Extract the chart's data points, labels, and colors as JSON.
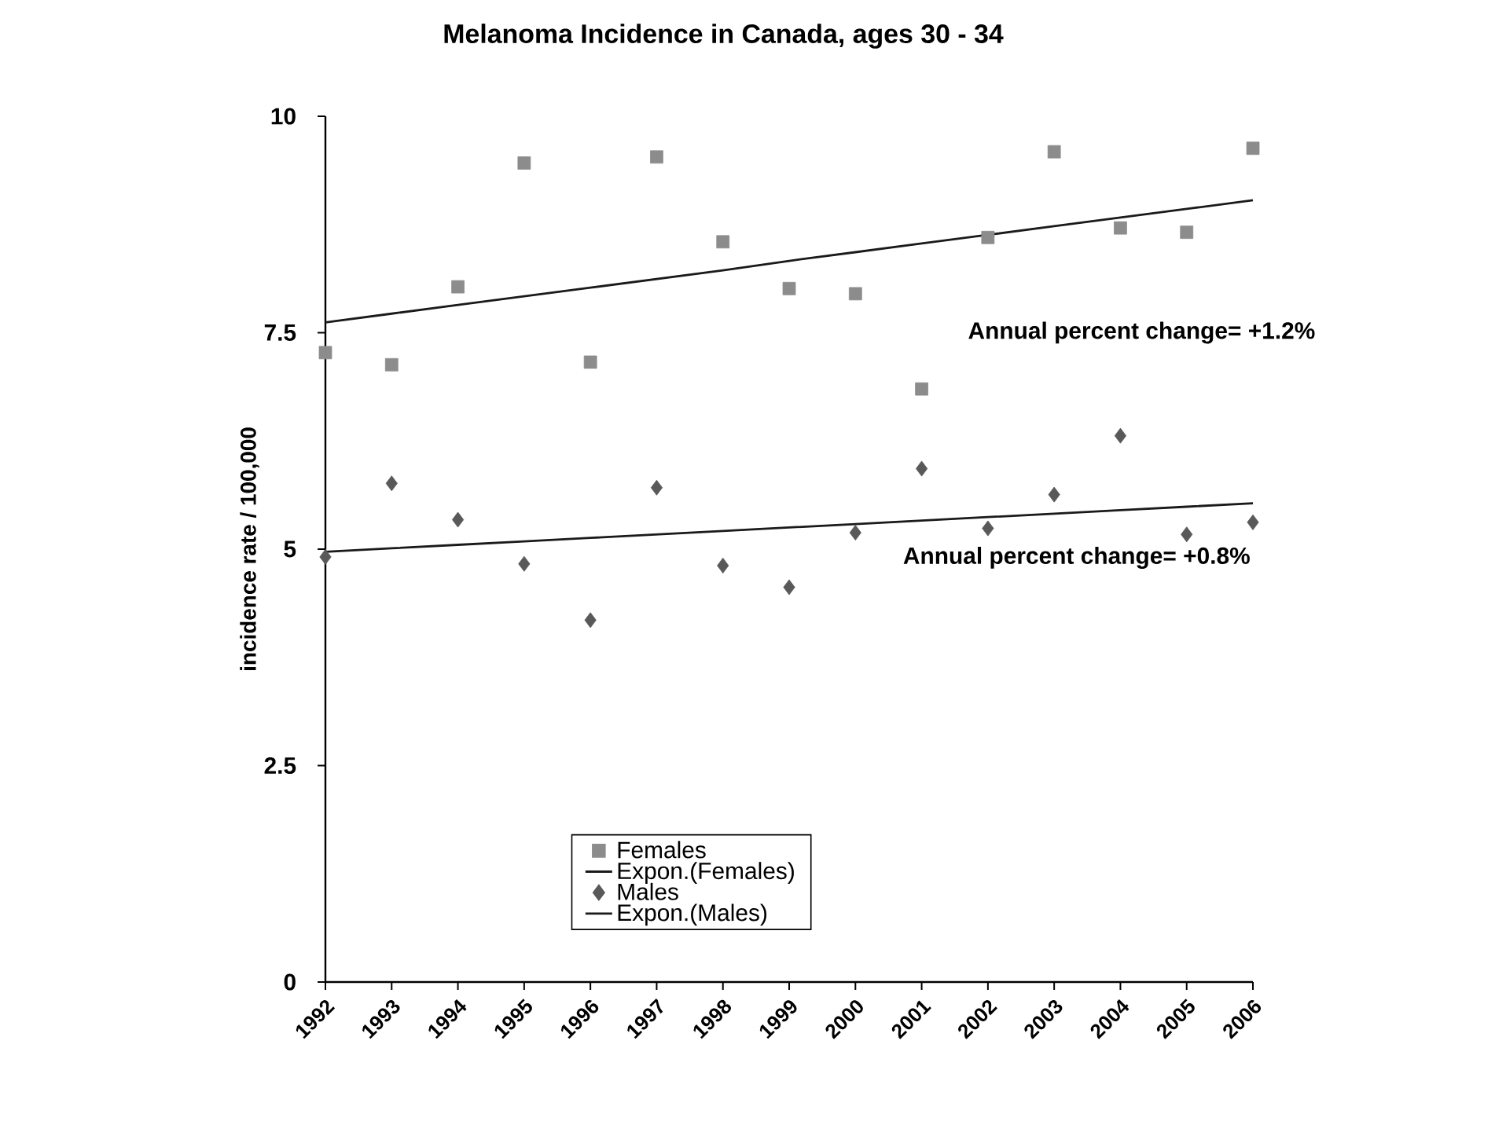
{
  "chart_data": {
    "type": "scatter",
    "title": "Melanoma Incidence in Canada,  ages 30 - 34",
    "ylabel": "incidence rate / 100,000",
    "x": [
      1992,
      1993,
      1994,
      1995,
      1996,
      1997,
      1998,
      1999,
      2000,
      2001,
      2002,
      2003,
      2004,
      2005,
      2006
    ],
    "xlim": [
      1992,
      2006
    ],
    "xticks": [
      1992,
      1993,
      1994,
      1995,
      1996,
      1997,
      1998,
      1999,
      2000,
      2001,
      2002,
      2003,
      2004,
      2005,
      2006
    ],
    "ylim": [
      0,
      10
    ],
    "yticks": [
      0,
      2.5,
      5,
      7.5,
      10
    ],
    "series": [
      {
        "name": "Females",
        "marker": "square",
        "color": "#8c8c8c",
        "values": [
          7.27,
          7.13,
          8.03,
          9.46,
          7.16,
          9.53,
          8.55,
          8.01,
          7.95,
          6.85,
          8.6,
          9.59,
          8.71,
          8.66,
          9.63
        ]
      },
      {
        "name": "Expon.(Females)",
        "type": "line",
        "marker": "none",
        "color": "#1a1a1a",
        "values": [
          7.62,
          7.72,
          7.82,
          7.92,
          8.02,
          8.12,
          8.22,
          8.33,
          8.43,
          8.53,
          8.63,
          8.73,
          8.83,
          8.93,
          9.03
        ]
      },
      {
        "name": "Males",
        "marker": "diamond",
        "color": "#595959",
        "values": [
          4.91,
          5.76,
          5.34,
          4.83,
          4.18,
          5.71,
          4.81,
          4.56,
          5.19,
          5.93,
          5.24,
          5.63,
          6.31,
          5.17,
          5.31
        ]
      },
      {
        "name": "Expon.(Males)",
        "type": "line",
        "marker": "none",
        "color": "#1a1a1a",
        "values": [
          4.97,
          5.01,
          5.05,
          5.09,
          5.13,
          5.17,
          5.21,
          5.25,
          5.29,
          5.33,
          5.37,
          5.41,
          5.45,
          5.49,
          5.53
        ]
      }
    ],
    "annotations": [
      "Annual percent change= +1.2%",
      "Annual percent change= +0.8%"
    ],
    "legend": "bottom",
    "grid": false
  }
}
